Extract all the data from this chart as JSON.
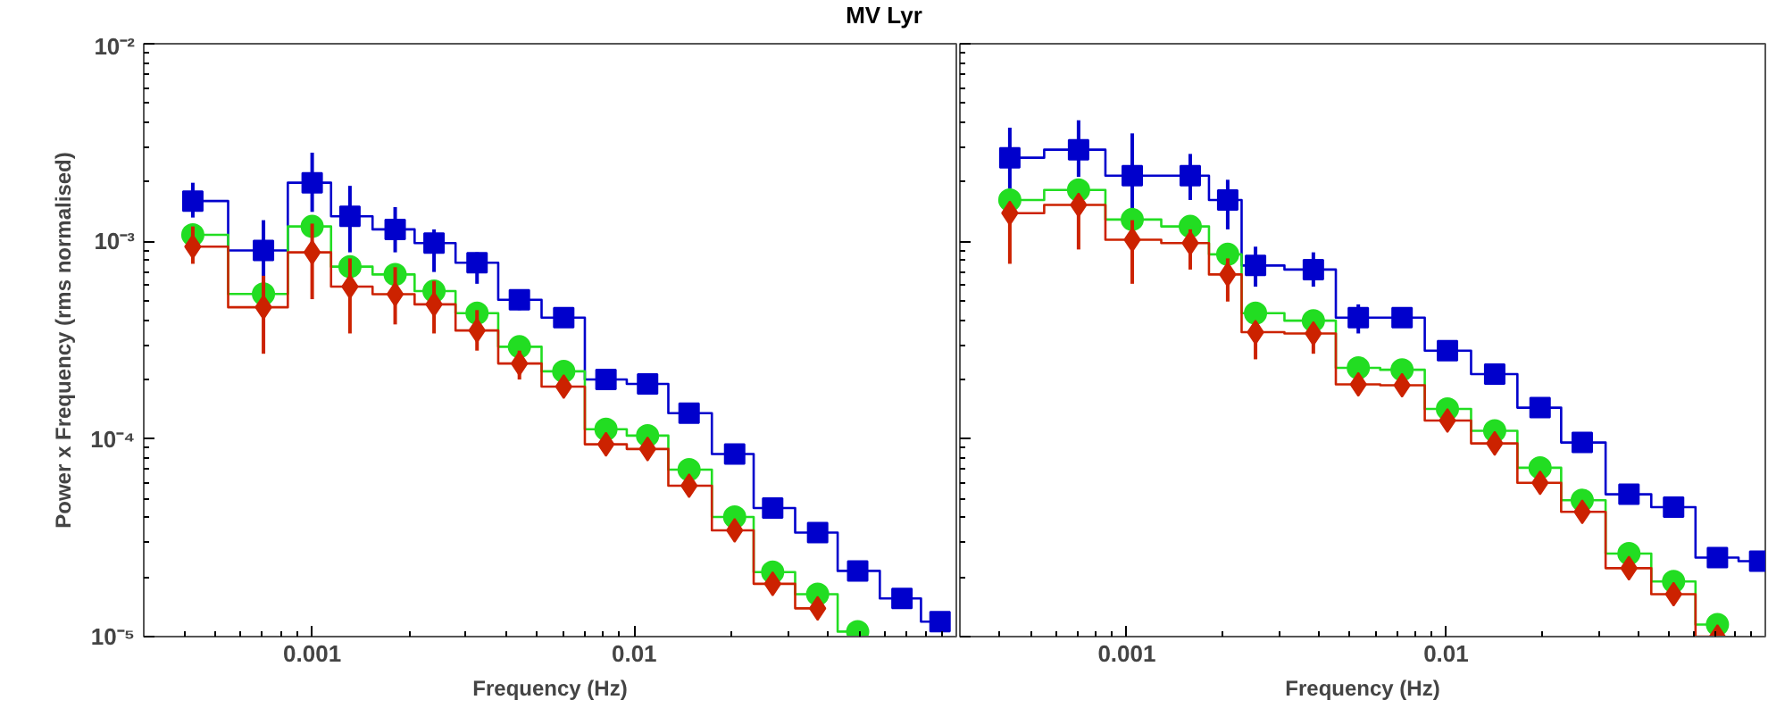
{
  "chart_data": [
    {
      "type": "step",
      "title": "MV Lyr",
      "xlabel": "Frequency (Hz)",
      "ylabel": "Power x Frequency (rms normalised)",
      "log": "xy",
      "grid": false,
      "xlim": [
        0.0003,
        0.1
      ],
      "ylim": [
        1e-05,
        0.01
      ],
      "xticks": [
        0.001,
        0.01
      ],
      "yticks": [
        {
          "value": 1e-05,
          "label": "10⁻⁵"
        },
        {
          "value": 0.0001,
          "label": "10⁻⁴"
        },
        {
          "value": 0.001,
          "label": "10⁻³"
        },
        {
          "value": 0.01,
          "label": "10⁻²"
        }
      ],
      "x": [
        0.000426,
        0.000706,
        0.001,
        0.00131,
        0.00181,
        0.00239,
        0.00325,
        0.0044,
        0.00604,
        0.00817,
        0.011,
        0.0148,
        0.0205,
        0.0269,
        0.0371,
        0.0494,
        0.0678,
        0.089
      ],
      "series": [
        {
          "color": "#0000cc",
          "marker": "square",
          "values": [
            0.0016,
            0.0009,
            0.00198,
            0.00134,
            0.00115,
            0.00098,
            0.00078,
            0.000506,
            0.000411,
            0.0002,
            0.00019,
            0.000135,
            8.4e-05,
            4.47e-05,
            3.36e-05,
            2.15e-05,
            1.56e-05,
            1.19e-05
          ],
          "errors": [
            [
              0.00132,
              0.00198
            ],
            [
              0.00061,
              0.00128
            ],
            [
              0.00141,
              0.00281
            ],
            [
              0.00088,
              0.00191
            ],
            [
              0.00088,
              0.00149
            ],
            [
              0.0007,
              0.00115
            ],
            [
              0.00061,
              0.00088
            ],
            [
              0.000449,
              0.000569
            ],
            null,
            null,
            null,
            null,
            null,
            null,
            null,
            null,
            null,
            null
          ]
        },
        {
          "color": "#22dd22",
          "marker": "circle",
          "values": [
            0.00108,
            0.000542,
            0.00119,
            0.000745,
            0.00068,
            0.00056,
            0.000433,
            0.000293,
            0.00022,
            0.000112,
            0.000104,
            7e-05,
            4.03e-05,
            2.12e-05,
            1.64e-05,
            1.06e-05,
            null,
            null
          ]
        },
        {
          "color": "#cc2200",
          "marker": "diamond",
          "values": [
            0.00094,
            0.000464,
            0.00088,
            0.00059,
            0.00054,
            0.00048,
            0.000354,
            0.000241,
            0.000184,
            9.4e-05,
            8.9e-05,
            5.8e-05,
            3.45e-05,
            1.85e-05,
            1.39e-05,
            null,
            null,
            null
          ],
          "errors": [
            [
              0.00077,
              0.00119
            ],
            [
              0.00027,
              0.00067
            ],
            [
              0.00051,
              0.00123
            ],
            [
              0.000342,
              0.00082
            ],
            [
              0.00038,
              0.00074
            ],
            [
              0.000342,
              0.00063
            ],
            [
              0.00028,
              0.000449
            ],
            [
              0.0002,
              0.00028
            ],
            null,
            null,
            null,
            null,
            null,
            null,
            null,
            null,
            null,
            null
          ]
        }
      ]
    },
    {
      "type": "step",
      "xlabel": "Frequency (Hz)",
      "log": "xy",
      "grid": false,
      "tick_labels": "x",
      "xlim": [
        0.0003,
        0.1
      ],
      "ylim": [
        1e-05,
        0.01
      ],
      "xticks": [
        0.001,
        0.01
      ],
      "yticks": [
        {
          "value": 1e-05,
          "label": null
        },
        {
          "value": 0.0001,
          "label": null
        },
        {
          "value": 0.001,
          "label": null
        },
        {
          "value": 0.01,
          "label": null
        }
      ],
      "x": [
        0.00043,
        0.000706,
        0.00104,
        0.00158,
        0.00207,
        0.00253,
        0.00384,
        0.00531,
        0.00728,
        0.0101,
        0.0142,
        0.0197,
        0.0267,
        0.0374,
        0.0516,
        0.0708,
        0.096
      ],
      "series": [
        {
          "color": "#0000cc",
          "marker": "square",
          "values": [
            0.00265,
            0.00291,
            0.00215,
            0.00215,
            0.00162,
            0.000755,
            0.00072,
            0.000411,
            0.000411,
            0.00028,
            0.000213,
            0.000144,
            9.6e-05,
            5.25e-05,
            4.52e-05,
            2.51e-05,
            2.41e-05
          ],
          "errors": [
            [
              0.00185,
              0.00376
            ],
            [
              0.00212,
              0.0041
            ],
            [
              0.00132,
              0.00352
            ],
            [
              0.00162,
              0.00277
            ],
            [
              0.00115,
              0.00205
            ],
            [
              0.00059,
              0.00094
            ],
            [
              0.00059,
              0.00088
            ],
            [
              0.000342,
              0.00048
            ],
            null,
            null,
            null,
            null,
            null,
            null,
            null,
            null,
            null
          ]
        },
        {
          "color": "#22dd22",
          "marker": "circle",
          "values": [
            0.00162,
            0.00182,
            0.00129,
            0.00119,
            0.00086,
            0.000433,
            0.000397,
            0.000229,
            0.000224,
            0.000142,
            0.00011,
            7.15e-05,
            4.9e-05,
            2.63e-05,
            1.9e-05,
            1.15e-05,
            null
          ]
        },
        {
          "color": "#cc2200",
          "marker": "diamond",
          "values": [
            0.00139,
            0.00153,
            0.00102,
            0.00098,
            0.00068,
            0.000347,
            0.000342,
            0.000189,
            0.000187,
            0.000124,
            9.5e-05,
            6e-05,
            4.28e-05,
            2.22e-05,
            1.64e-05,
            1e-05,
            null
          ],
          "errors": [
            [
              0.00077,
              0.00136
            ],
            [
              0.00091,
              0.00146
            ],
            [
              0.00061,
              0.00128
            ],
            [
              0.00072,
              0.00115
            ],
            [
              0.000496,
              0.00082
            ],
            [
              0.000253,
              0.00039
            ],
            [
              0.00027,
              0.00038
            ],
            null,
            null,
            null,
            null,
            null,
            null,
            null,
            null,
            null,
            null
          ]
        }
      ]
    }
  ]
}
